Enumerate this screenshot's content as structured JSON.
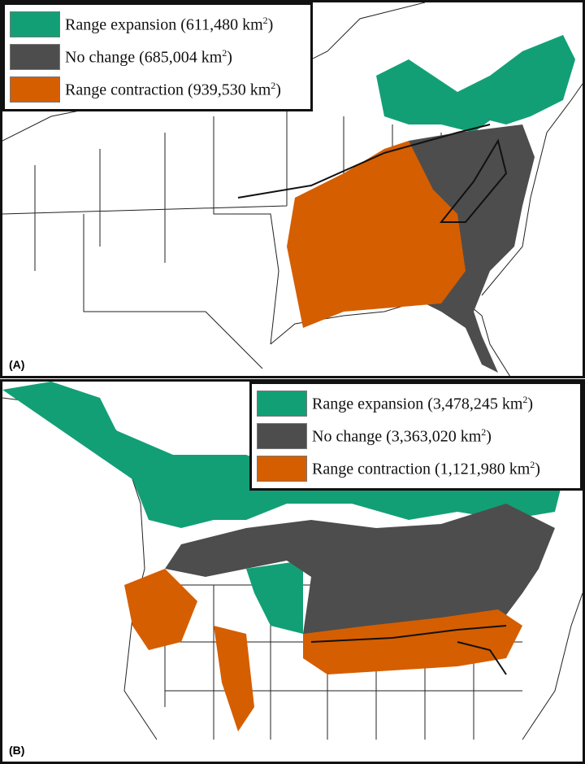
{
  "colors": {
    "expansion": "#129f76",
    "no_change": "#4d4d4d",
    "contraction": "#d55e00"
  },
  "panels": [
    {
      "label": "(A)",
      "legend": [
        {
          "text": "Range expansion (611,480 km",
          "sup": "2",
          "close": ")",
          "color": "#129f76"
        },
        {
          "text": "No change (685,004 km",
          "sup": "2",
          "close": ")",
          "color": "#4d4d4d"
        },
        {
          "text": "Range contraction (939,530 km",
          "sup": "2",
          "close": ")",
          "color": "#d55e00"
        }
      ]
    },
    {
      "label": "(B)",
      "legend": [
        {
          "text": "Range expansion (3,478,245 km",
          "sup": "2",
          "close": ")",
          "color": "#129f76"
        },
        {
          "text": "No change (3,363,020 km",
          "sup": "2",
          "close": ")",
          "color": "#4d4d4d"
        },
        {
          "text": "Range contraction (1,121,980 km",
          "sup": "2",
          "close": ")",
          "color": "#d55e00"
        }
      ]
    }
  ]
}
